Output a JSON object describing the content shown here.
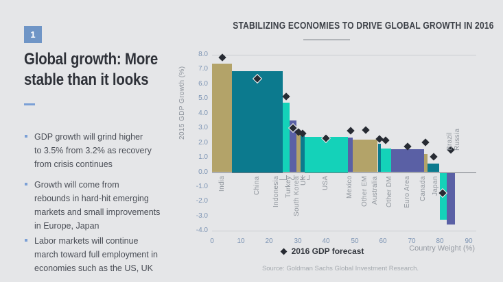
{
  "slide": {
    "number": "1",
    "title_lines": [
      "Global growth: More",
      "stable than it looks"
    ],
    "accent_color": "#6f95c6",
    "bullets": [
      {
        "lines": [
          "GDP growth will grind higher",
          "to 3.5% from 3.2% as recovery",
          "from crisis continues"
        ]
      },
      {
        "lines": [
          "Growth will come from",
          "rebounds in hard-hit emerging",
          "markets and small improvements",
          "in Europe, Japan"
        ]
      },
      {
        "lines": [
          "Labor markets will continue",
          "march toward full employment in",
          "economies such as the US, UK"
        ]
      }
    ]
  },
  "chart_data": {
    "type": "bar",
    "variant": "variable-width (bar width = country weight, height = GDP growth)",
    "title": "STABILIZING ECONOMIES TO DRIVE GLOBAL GROWTH IN 2016",
    "ylabel": "2015 GDP Growth (%)",
    "xlabel": "Country Weight (%)",
    "ylim": [
      -4.0,
      8.0
    ],
    "xlim": [
      0,
      90
    ],
    "y_ticks": [
      8,
      7,
      6,
      5,
      4,
      3,
      2,
      1,
      0,
      -1,
      -2,
      -3,
      -4
    ],
    "x_ticks": [
      0,
      10,
      20,
      30,
      40,
      50,
      60,
      70,
      80,
      90
    ],
    "grid": "top, zero and bottom lines only",
    "legend": {
      "label": "2016 GDP forecast",
      "marker": "diamond",
      "position": "bottom-center"
    },
    "source": "Source: Goldman Sachs Global Investment Research.",
    "palette": {
      "khaki": "#b3a369",
      "teal": "#0c7a8e",
      "turquoise": "#14d2b9",
      "purple": "#5a60a5",
      "diamond": "#272b33"
    },
    "countries": [
      {
        "name": "India",
        "weight": 7.0,
        "gdp_2015": 7.4,
        "forecast_2016": 7.8,
        "color_key": "khaki",
        "label_pos": "below"
      },
      {
        "name": "China",
        "weight": 17.9,
        "gdp_2015": 6.9,
        "forecast_2016": 6.35,
        "color_key": "teal",
        "label_pos": "below",
        "ring": true
      },
      {
        "name": "Indonesia",
        "weight": 2.4,
        "gdp_2015": 4.75,
        "forecast_2016": 5.15,
        "color_key": "turquoise",
        "label_pos": "below",
        "bracket": true,
        "label_dx": -14
      },
      {
        "name": "Turkey",
        "weight": 2.3,
        "gdp_2015": 3.5,
        "forecast_2016": 3.0,
        "color_key": "purple",
        "label_pos": "below",
        "ring": true,
        "bracket": true,
        "label_dx": -6
      },
      {
        "name": "South Korea",
        "weight": 1.4,
        "gdp_2015": 2.65,
        "forecast_2016": 2.75,
        "color_key": "khaki",
        "label_pos": "below",
        "bracket": true,
        "label_dx": -2
      },
      {
        "name": "UK",
        "weight": 1.6,
        "gdp_2015": 2.5,
        "forecast_2016": 2.65,
        "color_key": "teal",
        "label_pos": "below",
        "bracket": true,
        "label_dx": 2
      },
      {
        "name": "USA",
        "weight": 15.0,
        "gdp_2015": 2.4,
        "forecast_2016": 2.3,
        "color_key": "turquoise",
        "label_pos": "below",
        "ring": true
      },
      {
        "name": "Mexico",
        "weight": 1.9,
        "gdp_2015": 2.35,
        "forecast_2016": 2.8,
        "color_key": "purple",
        "label_pos": "below"
      },
      {
        "name": "Other EM",
        "weight": 8.7,
        "gdp_2015": 2.2,
        "forecast_2016": 2.85,
        "color_key": "khaki",
        "label_pos": "below"
      },
      {
        "name": "Australia",
        "weight": 1.0,
        "gdp_2015": 1.95,
        "forecast_2016": 2.25,
        "color_key": "teal",
        "label_pos": "below",
        "label_dx": -6
      },
      {
        "name": "Other DM",
        "weight": 3.6,
        "gdp_2015": 1.6,
        "forecast_2016": 2.15,
        "color_key": "turquoise",
        "label_pos": "below",
        "label_dx": 6
      },
      {
        "name": "Euro Area",
        "weight": 11.6,
        "gdp_2015": 1.55,
        "forecast_2016": 1.75,
        "color_key": "purple",
        "label_pos": "below"
      },
      {
        "name": "Canada",
        "weight": 1.2,
        "gdp_2015": 1.25,
        "forecast_2016": 2.05,
        "color_key": "khaki",
        "label_pos": "below",
        "label_dx": -3
      },
      {
        "name": "Japan",
        "weight": 4.3,
        "gdp_2015": 0.6,
        "forecast_2016": 1.05,
        "color_key": "teal",
        "label_pos": "below",
        "label_dx": 3
      },
      {
        "name": "Brazil",
        "weight": 2.4,
        "gdp_2015": -3.2,
        "forecast_2016": -1.45,
        "color_key": "turquoise",
        "label_pos": "above",
        "ring": true,
        "label_dx": 10
      },
      {
        "name": "Russia",
        "weight": 2.9,
        "gdp_2015": -3.5,
        "forecast_2016": 1.5,
        "color_key": "purple",
        "label_pos": "above",
        "label_dx": 10
      }
    ]
  }
}
